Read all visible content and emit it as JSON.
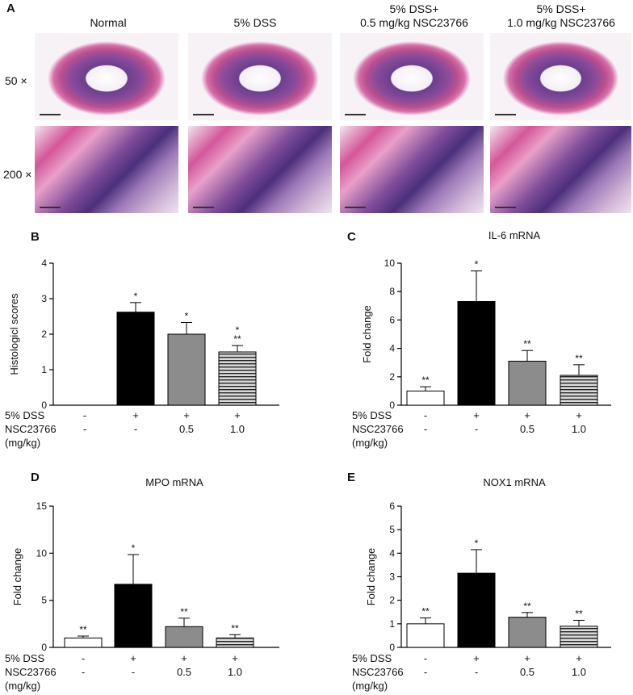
{
  "panel_a": {
    "letter": "A",
    "headers": [
      "Normal",
      "5% DSS",
      "5% DSS+\n0.5 mg/kg NSC23766",
      "5% DSS+\n1.0 mg/kg NSC23766"
    ],
    "magnifications": [
      "50 ×",
      "200 ×"
    ]
  },
  "conditions": {
    "row1_label": "5% DSS",
    "row2_label": "NSC23766",
    "row3_label": "(mg/kg)",
    "dss": [
      "-",
      "+",
      "+",
      "+"
    ],
    "nsc": [
      "-",
      "-",
      "0.5",
      "1.0"
    ]
  },
  "chart_data": [
    {
      "panel": "B",
      "type": "bar",
      "title": "",
      "ylabel": "Histologicl scores",
      "ylim": [
        0,
        4
      ],
      "yticks": [
        "0",
        "1",
        "2",
        "3",
        "4"
      ],
      "values": [
        0,
        2.62,
        2.0,
        1.5
      ],
      "errors": [
        0,
        0.27,
        0.33,
        0.18
      ],
      "annotations": [
        "",
        "*",
        "*",
        "*\n**"
      ],
      "fills": [
        "white",
        "black",
        "gray",
        "striped"
      ]
    },
    {
      "panel": "C",
      "type": "bar",
      "title": "IL-6 mRNA",
      "ylabel": "Fold change",
      "ylim": [
        0,
        10
      ],
      "yticks": [
        "0",
        "2",
        "4",
        "6",
        "8",
        "10"
      ],
      "values": [
        1.0,
        7.3,
        3.1,
        2.1
      ],
      "errors": [
        0.3,
        2.15,
        0.75,
        0.75
      ],
      "annotations": [
        "**",
        "*",
        "**",
        "**"
      ],
      "fills": [
        "white",
        "black",
        "gray",
        "striped"
      ]
    },
    {
      "panel": "D",
      "type": "bar",
      "title": "MPO mRNA",
      "ylabel": "Fold change",
      "ylim": [
        0,
        15
      ],
      "yticks": [
        "0",
        "5",
        "10",
        "15"
      ],
      "values": [
        1.0,
        6.7,
        2.2,
        1.0
      ],
      "errors": [
        0.2,
        3.15,
        0.9,
        0.35
      ],
      "annotations": [
        "**",
        "*",
        "**",
        "**"
      ],
      "fills": [
        "white",
        "black",
        "gray",
        "striped"
      ]
    },
    {
      "panel": "E",
      "type": "bar",
      "title": "NOX1 mRNA",
      "ylabel": "Fold change",
      "ylim": [
        0,
        6
      ],
      "yticks": [
        "0",
        "1",
        "2",
        "3",
        "4",
        "5",
        "6"
      ],
      "values": [
        1.0,
        3.15,
        1.28,
        0.9
      ],
      "errors": [
        0.25,
        1.0,
        0.2,
        0.25
      ],
      "annotations": [
        "**",
        "*",
        "**",
        "**"
      ],
      "fills": [
        "white",
        "black",
        "gray",
        "striped"
      ]
    }
  ]
}
